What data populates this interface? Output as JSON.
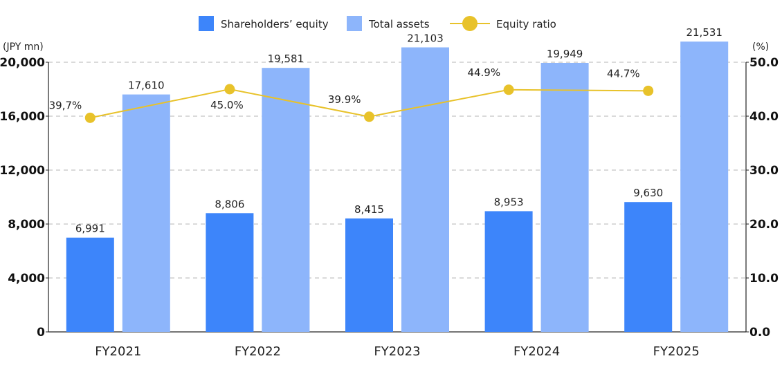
{
  "chart_data": {
    "type": "bar",
    "categories": [
      "FY2021",
      "FY2022",
      "FY2023",
      "FY2024",
      "FY2025"
    ],
    "series": [
      {
        "name": "Shareholders’ equity",
        "kind": "bar",
        "axis": "left",
        "color": "#3D85FA",
        "values": [
          6991,
          8806,
          8415,
          8953,
          9630
        ],
        "labels": [
          "6,991",
          "8,806",
          "8,415",
          "8,953",
          "9,630"
        ]
      },
      {
        "name": "Total assets",
        "kind": "bar",
        "axis": "left",
        "color": "#8DB5FB",
        "values": [
          17610,
          19581,
          21103,
          19949,
          21531
        ],
        "labels": [
          "17,610",
          "19,581",
          "21,103",
          "19,949",
          "21,531"
        ]
      },
      {
        "name": "Equity ratio",
        "kind": "line",
        "axis": "right",
        "color": "#E8C22A",
        "values": [
          39.7,
          45.0,
          39.9,
          44.9,
          44.7
        ],
        "labels": [
          "39,7%",
          "45.0%",
          "39.9%",
          "44.9%",
          "44.7%"
        ]
      }
    ],
    "y_left": {
      "unit": "(JPY mn)",
      "range": [
        0,
        20000
      ],
      "ticks": [
        0,
        4000,
        8000,
        12000,
        16000,
        20000
      ],
      "tick_labels": [
        "0",
        "4,000",
        "8,000",
        "12,000",
        "16,000",
        "20,000"
      ]
    },
    "y_right": {
      "unit": "(%)",
      "range": [
        0,
        50
      ],
      "ticks": [
        0,
        10,
        20,
        30,
        40,
        50
      ],
      "tick_labels": [
        "0.0",
        "10.0",
        "20.0",
        "30.0",
        "40.0",
        "50.0"
      ]
    },
    "grid": "horizontal-dashed",
    "legend_position": "top-center"
  }
}
